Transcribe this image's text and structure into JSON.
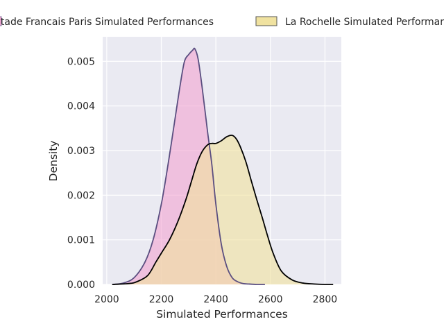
{
  "chart_data": {
    "type": "area",
    "kind": "kde",
    "title": "",
    "xlabel": "Simulated Performances",
    "ylabel": "Density",
    "xlim": [
      1985,
      2860
    ],
    "ylim": [
      0,
      0.00555
    ],
    "xticks": [
      2000,
      2200,
      2400,
      2600,
      2800
    ],
    "xtick_labels": [
      "2000",
      "2200",
      "2400",
      "2600",
      "2800"
    ],
    "yticks": [
      0,
      0.001,
      0.002,
      0.003,
      0.004,
      0.005
    ],
    "ytick_labels": [
      "0.000",
      "0.001",
      "0.002",
      "0.003",
      "0.004",
      "0.005"
    ],
    "grid": true,
    "legend_position": "top",
    "series": [
      {
        "name": "Stade Francais Paris Simulated Performances",
        "fill_color": "#f2a7d2",
        "line_color": "#5a4e80",
        "x": [
          2020,
          2060,
          2100,
          2140,
          2170,
          2200,
          2225,
          2250,
          2270,
          2285,
          2300,
          2315,
          2323,
          2335,
          2350,
          2370,
          2385,
          2400,
          2420,
          2440,
          2460,
          2480,
          2500,
          2520,
          2550,
          2580
        ],
        "y": [
          0.0,
          3e-05,
          0.00015,
          0.0005,
          0.001,
          0.0018,
          0.0027,
          0.0037,
          0.0045,
          0.005,
          0.00515,
          0.00525,
          0.00528,
          0.00505,
          0.0044,
          0.0034,
          0.0027,
          0.0018,
          0.0009,
          0.0004,
          0.00015,
          6e-05,
          2e-05,
          1e-05,
          0.0,
          0.0
        ]
      },
      {
        "name": "La Rochelle Simulated Performances",
        "fill_color": "#f0e2a0",
        "line_color": "#000000",
        "x": [
          2020,
          2080,
          2110,
          2150,
          2180,
          2200,
          2230,
          2260,
          2290,
          2310,
          2330,
          2350,
          2370,
          2385,
          2400,
          2420,
          2440,
          2460,
          2475,
          2490,
          2510,
          2530,
          2550,
          2570,
          2590,
          2610,
          2640,
          2680,
          2720,
          2760,
          2800,
          2830
        ],
        "y": [
          0.0,
          2e-05,
          6e-05,
          0.0002,
          0.0005,
          0.0007,
          0.001,
          0.0014,
          0.0019,
          0.0023,
          0.0027,
          0.00298,
          0.00313,
          0.00316,
          0.00316,
          0.00322,
          0.00331,
          0.00334,
          0.00326,
          0.00308,
          0.00275,
          0.00232,
          0.0019,
          0.0015,
          0.00108,
          0.0007,
          0.0003,
          0.0001,
          3e-05,
          1e-05,
          0.0,
          0.0
        ]
      }
    ]
  }
}
